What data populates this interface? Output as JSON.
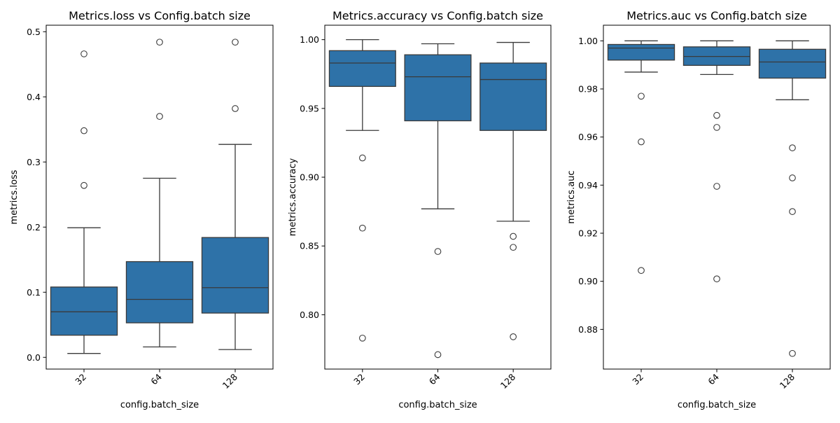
{
  "colors": {
    "box_fill": "#2e72a8",
    "line": "#3a3a3a",
    "axis": "#000000",
    "background": "#ffffff"
  },
  "chart_data": [
    {
      "type": "box",
      "title": "Metrics.loss vs Config.batch size",
      "xlabel": "config.batch_size",
      "ylabel": "metrics.loss",
      "categories": [
        "32",
        "64",
        "128"
      ],
      "ylim": [
        -0.018,
        0.51
      ],
      "yticks": [
        0.0,
        0.1,
        0.2,
        0.3,
        0.4,
        0.5
      ],
      "ytick_labels": [
        "0.0",
        "0.1",
        "0.2",
        "0.3",
        "0.4",
        "0.5"
      ],
      "grid": false,
      "boxes": [
        {
          "category": "32",
          "whisker_low": 0.006,
          "q1": 0.034,
          "median": 0.07,
          "q3": 0.108,
          "whisker_high": 0.199,
          "outliers": [
            0.264,
            0.348,
            0.466
          ]
        },
        {
          "category": "64",
          "whisker_low": 0.016,
          "q1": 0.053,
          "median": 0.089,
          "q3": 0.147,
          "whisker_high": 0.275,
          "outliers": [
            0.37,
            0.484
          ]
        },
        {
          "category": "128",
          "whisker_low": 0.012,
          "q1": 0.068,
          "median": 0.107,
          "q3": 0.184,
          "whisker_high": 0.327,
          "outliers": [
            0.382,
            0.484
          ]
        }
      ]
    },
    {
      "type": "box",
      "title": "Metrics.accuracy vs Config.batch size",
      "xlabel": "config.batch_size",
      "ylabel": "metrics.accuracy",
      "categories": [
        "32",
        "64",
        "128"
      ],
      "ylim": [
        0.7605,
        1.0105
      ],
      "yticks": [
        0.8,
        0.85,
        0.9,
        0.95,
        1.0
      ],
      "ytick_labels": [
        "0.80",
        "0.85",
        "0.90",
        "0.95",
        "1.00"
      ],
      "grid": false,
      "boxes": [
        {
          "category": "32",
          "whisker_low": 0.934,
          "q1": 0.966,
          "median": 0.983,
          "q3": 0.992,
          "whisker_high": 1.0,
          "outliers": [
            0.914,
            0.863,
            0.783
          ]
        },
        {
          "category": "64",
          "whisker_low": 0.877,
          "q1": 0.941,
          "median": 0.973,
          "q3": 0.989,
          "whisker_high": 0.997,
          "outliers": [
            0.846,
            0.771
          ]
        },
        {
          "category": "128",
          "whisker_low": 0.868,
          "q1": 0.934,
          "median": 0.971,
          "q3": 0.983,
          "whisker_high": 0.998,
          "outliers": [
            0.857,
            0.849,
            0.784
          ]
        }
      ]
    },
    {
      "type": "box",
      "title": "Metrics.auc vs Config.batch size",
      "xlabel": "config.batch_size",
      "ylabel": "metrics.auc",
      "categories": [
        "32",
        "64",
        "128"
      ],
      "ylim": [
        0.8635,
        1.0065
      ],
      "yticks": [
        0.88,
        0.9,
        0.92,
        0.94,
        0.96,
        0.98,
        1.0
      ],
      "ytick_labels": [
        "0.88",
        "0.90",
        "0.92",
        "0.94",
        "0.96",
        "0.98",
        "1.00"
      ],
      "grid": false,
      "boxes": [
        {
          "category": "32",
          "whisker_low": 0.987,
          "q1": 0.992,
          "median": 0.997,
          "q3": 0.9985,
          "whisker_high": 1.0,
          "outliers": [
            0.977,
            0.958,
            0.9045
          ]
        },
        {
          "category": "64",
          "whisker_low": 0.986,
          "q1": 0.9898,
          "median": 0.9935,
          "q3": 0.9975,
          "whisker_high": 1.0,
          "outliers": [
            0.969,
            0.964,
            0.9395,
            0.901
          ]
        },
        {
          "category": "128",
          "whisker_low": 0.9755,
          "q1": 0.9845,
          "median": 0.9912,
          "q3": 0.9965,
          "whisker_high": 1.0,
          "outliers": [
            0.9555,
            0.943,
            0.929,
            0.87
          ]
        }
      ]
    }
  ]
}
